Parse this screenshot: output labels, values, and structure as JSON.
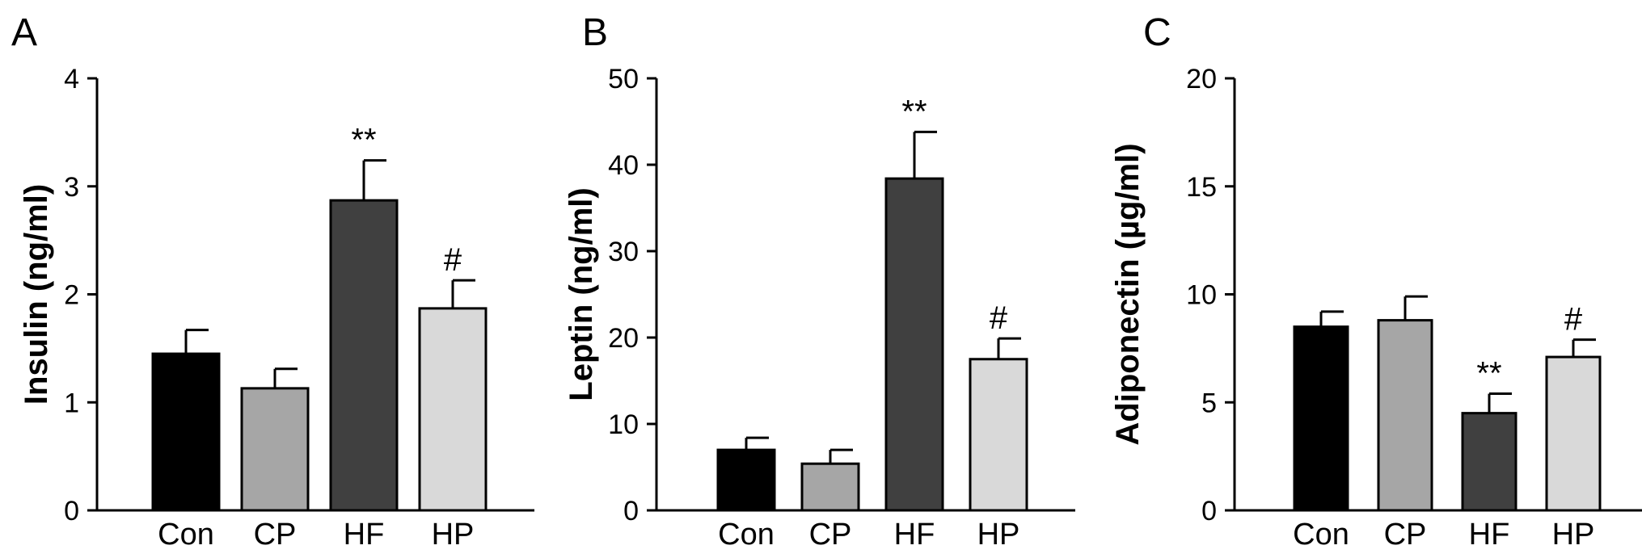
{
  "chart_data": [
    {
      "type": "bar",
      "panel_label": "A",
      "title": "",
      "xlabel": "",
      "ylabel": "Insulin (ng/ml)",
      "ylim": [
        0,
        4
      ],
      "yticks": [
        "0",
        "1",
        "2",
        "3",
        "4"
      ],
      "categories": [
        "Con",
        "CP",
        "HF",
        "HP"
      ],
      "values": [
        1.45,
        1.13,
        2.87,
        1.87
      ],
      "errors": [
        0.22,
        0.18,
        0.37,
        0.26
      ],
      "significance": [
        "",
        "",
        "**",
        "#"
      ],
      "bar_colors": [
        "#000000",
        "#a6a6a6",
        "#404040",
        "#d9d9d9"
      ],
      "grid": false,
      "legend": "none"
    },
    {
      "type": "bar",
      "panel_label": "B",
      "title": "",
      "xlabel": "",
      "ylabel": "Leptin (ng/ml)",
      "ylim": [
        0,
        50
      ],
      "yticks": [
        "0",
        "10",
        "20",
        "30",
        "40",
        "50"
      ],
      "categories": [
        "Con",
        "CP",
        "HF",
        "HP"
      ],
      "values": [
        7.0,
        5.4,
        38.4,
        17.5
      ],
      "errors": [
        1.4,
        1.6,
        5.4,
        2.4
      ],
      "significance": [
        "",
        "",
        "**",
        "#"
      ],
      "bar_colors": [
        "#000000",
        "#a6a6a6",
        "#404040",
        "#d9d9d9"
      ],
      "grid": false,
      "legend": "none"
    },
    {
      "type": "bar",
      "panel_label": "C",
      "title": "",
      "xlabel": "",
      "ylabel": "Adiponectin (µg/ml)",
      "ylim": [
        0,
        20
      ],
      "yticks": [
        "0",
        "5",
        "10",
        "15",
        "20"
      ],
      "categories": [
        "Con",
        "CP",
        "HF",
        "HP"
      ],
      "values": [
        8.5,
        8.8,
        4.5,
        7.1
      ],
      "errors": [
        0.7,
        1.1,
        0.9,
        0.8
      ],
      "significance": [
        "",
        "",
        "**",
        "#"
      ],
      "bar_colors": [
        "#000000",
        "#a6a6a6",
        "#404040",
        "#d9d9d9"
      ],
      "grid": false,
      "legend": "none"
    }
  ]
}
